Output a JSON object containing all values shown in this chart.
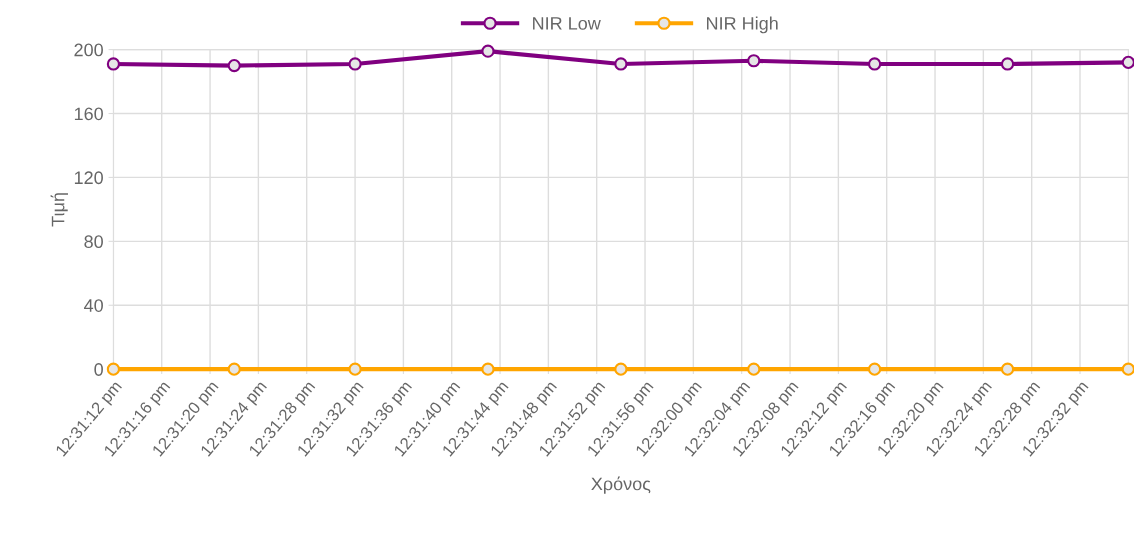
{
  "chart_data": {
    "type": "line",
    "xlabel": "Χρόνος",
    "ylabel": "Τιμή",
    "x": [
      12.52,
      12.522778,
      12.525556,
      12.528611,
      12.531667,
      12.534722,
      12.5375,
      12.540556,
      12.543333
    ],
    "series": [
      {
        "name": "NIR Low",
        "color": "#800080",
        "values": [
          191,
          190,
          191,
          199,
          191,
          193,
          191,
          191,
          192
        ]
      },
      {
        "name": "NIR High",
        "color": "#ffa500",
        "values": [
          0,
          0,
          0,
          0,
          0,
          0,
          0,
          0,
          0
        ]
      }
    ],
    "xlim": [
      12.52,
      12.543333
    ],
    "xticks": [
      {
        "value": 12.52,
        "label": "12:31:12 pm"
      },
      {
        "value": 12.521111,
        "label": "12:31:16 pm"
      },
      {
        "value": 12.522222,
        "label": "12:31:20 pm"
      },
      {
        "value": 12.523333,
        "label": "12:31:24 pm"
      },
      {
        "value": 12.524444,
        "label": "12:31:28 pm"
      },
      {
        "value": 12.525556,
        "label": "12:31:32 pm"
      },
      {
        "value": 12.526667,
        "label": "12:31:36 pm"
      },
      {
        "value": 12.527778,
        "label": "12:31:40 pm"
      },
      {
        "value": 12.528889,
        "label": "12:31:44 pm"
      },
      {
        "value": 12.53,
        "label": "12:31:48 pm"
      },
      {
        "value": 12.531111,
        "label": "12:31:52 pm"
      },
      {
        "value": 12.532222,
        "label": "12:31:56 pm"
      },
      {
        "value": 12.533333,
        "label": "12:32:00 pm"
      },
      {
        "value": 12.534444,
        "label": "12:32:04 pm"
      },
      {
        "value": 12.535556,
        "label": "12:32:08 pm"
      },
      {
        "value": 12.536667,
        "label": "12:32:12 pm"
      },
      {
        "value": 12.537778,
        "label": "12:32:16 pm"
      },
      {
        "value": 12.538889,
        "label": "12:32:20 pm"
      },
      {
        "value": 12.54,
        "label": "12:32:24 pm"
      },
      {
        "value": 12.541111,
        "label": "12:32:28 pm"
      },
      {
        "value": 12.542222,
        "label": "12:32:32 pm"
      }
    ],
    "ylim": [
      0,
      200
    ],
    "yticks": [
      0,
      40,
      80,
      120,
      160,
      200
    ],
    "grid": true,
    "legend": "top",
    "marker": "circle",
    "line_style": "solid"
  }
}
